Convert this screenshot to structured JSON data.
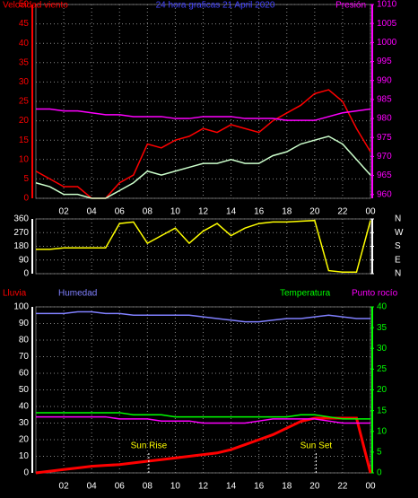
{
  "chart_data": [
    {
      "type": "line",
      "title": "24 hora graficas  21 April 2020",
      "title_color": "#4444ff",
      "ylabel": "Velocidad viento",
      "ylabel_color": "#ff0000",
      "y2label": "Presión",
      "y2label_color": "#ff00ff",
      "x": [
        0,
        1,
        2,
        3,
        4,
        5,
        6,
        7,
        8,
        9,
        10,
        11,
        12,
        13,
        14,
        15,
        16,
        17,
        18,
        19,
        20,
        21,
        22,
        23,
        24
      ],
      "xlim": [
        0,
        24
      ],
      "xticks": [
        {
          "value": 2,
          "label": "02"
        },
        {
          "value": 4,
          "label": "04"
        },
        {
          "value": 6,
          "label": "06"
        },
        {
          "value": 8,
          "label": "08"
        },
        10,
        12,
        14,
        16,
        18,
        20,
        22,
        {
          "value": 24,
          "label": "00"
        }
      ],
      "ylim": [
        0,
        50
      ],
      "yticks": [
        0,
        5,
        10,
        15,
        20,
        25,
        30,
        35,
        40,
        45,
        50
      ],
      "ytick_color": "#ff0000",
      "y2lim": [
        959,
        1010
      ],
      "y2ticks": [
        960,
        965,
        970,
        975,
        980,
        985,
        990,
        995,
        1000,
        1005,
        1010
      ],
      "y2tick_color": "#ff00ff",
      "grid": true,
      "series": [
        {
          "color": "#ff0000",
          "values": [
            7,
            5,
            3,
            3,
            0,
            0,
            4,
            6,
            14,
            13,
            15,
            16,
            18,
            17,
            19,
            18,
            17,
            20,
            22,
            24,
            27,
            28,
            25,
            18,
            12
          ]
        },
        {
          "color": "#ccffcc",
          "values": [
            4,
            3,
            1,
            1,
            0,
            0,
            2,
            4,
            7,
            6,
            7,
            8,
            9,
            9,
            10,
            9,
            9,
            11,
            12,
            14,
            15,
            16,
            14,
            10,
            6
          ]
        },
        {
          "color": "#ff00ff",
          "axis": "y2",
          "values": [
            982.5,
            982.5,
            982,
            982,
            981.5,
            981,
            981,
            980.5,
            980.5,
            980.5,
            980,
            980,
            980.5,
            980.5,
            980.5,
            980,
            980,
            980,
            979.5,
            979.5,
            979.5,
            980.5,
            981.5,
            982,
            982.5
          ]
        }
      ]
    },
    {
      "type": "line",
      "x": [
        0,
        1,
        2,
        3,
        4,
        5,
        6,
        7,
        8,
        9,
        10,
        11,
        12,
        13,
        14,
        15,
        16,
        17,
        18,
        19,
        20,
        21,
        22,
        23,
        24
      ],
      "xlim": [
        0,
        24
      ],
      "xticks": [
        2,
        4,
        6,
        8,
        10,
        12,
        14,
        16,
        18,
        20,
        22,
        24
      ],
      "xtick_labels": false,
      "ylim": [
        0,
        360
      ],
      "yticks": [
        0,
        90,
        180,
        270,
        360
      ],
      "ytick_color": "#ffffff",
      "y2lim": [
        0,
        360
      ],
      "y2ticks": [
        {
          "value": 360,
          "label": "N"
        },
        {
          "value": 270,
          "label": "W"
        },
        {
          "value": 180,
          "label": "S"
        },
        {
          "value": 90,
          "label": "E"
        },
        {
          "value": 0,
          "label": "N"
        }
      ],
      "y2tick_color": "#ffffff",
      "grid": true,
      "series": [
        {
          "color": "#ffff00",
          "values": [
            160,
            160,
            170,
            170,
            170,
            170,
            330,
            340,
            200,
            250,
            300,
            200,
            280,
            330,
            250,
            300,
            330,
            340,
            340,
            345,
            350,
            20,
            10,
            10,
            350
          ]
        }
      ]
    },
    {
      "type": "line",
      "ylabel": "Lluvia",
      "ylabel_color": "#ff0000",
      "x": [
        0,
        1,
        2,
        3,
        4,
        5,
        6,
        7,
        8,
        9,
        10,
        11,
        12,
        13,
        14,
        15,
        16,
        17,
        18,
        19,
        20,
        21,
        22,
        23,
        24
      ],
      "xlim": [
        0,
        24
      ],
      "xticks": [
        {
          "value": 2,
          "label": "02"
        },
        {
          "value": 4,
          "label": "04"
        },
        {
          "value": 6,
          "label": "06"
        },
        {
          "value": 8,
          "label": "08"
        },
        10,
        12,
        14,
        16,
        18,
        20,
        22,
        {
          "value": 24,
          "label": "00"
        }
      ],
      "ylim": [
        0,
        100
      ],
      "yticks": [
        0,
        10,
        20,
        30,
        40,
        50,
        60,
        70,
        80,
        90,
        100
      ],
      "ytick_color": "#ffffff",
      "y2lim": [
        0,
        40
      ],
      "y2ticks": [
        0,
        5,
        10,
        15,
        20,
        25,
        30,
        35,
        40
      ],
      "y2tick_color": "#00ff00",
      "grid": true,
      "series": [
        {
          "color": "#ff0000",
          "width": 3,
          "values": [
            0,
            1,
            2,
            3,
            4,
            4.5,
            5,
            6,
            7,
            8,
            9,
            10,
            11,
            12,
            14,
            17,
            20,
            23,
            27,
            31,
            33,
            33,
            33,
            33,
            0
          ]
        },
        {
          "name": "Humedad",
          "color": "#8080ff",
          "values": [
            96,
            96,
            96,
            97,
            97,
            96,
            96,
            95,
            95,
            95,
            95,
            95,
            94,
            93,
            92,
            91,
            91,
            92,
            93,
            93,
            94,
            95,
            94,
            93,
            93
          ]
        },
        {
          "name": "Temperatura",
          "color": "#00ff00",
          "axis": "y2",
          "values": [
            14.5,
            14.5,
            14.5,
            14.5,
            14.5,
            14.5,
            14.5,
            14,
            14,
            14,
            13.5,
            13.5,
            13.5,
            13.5,
            13.5,
            13.5,
            13.5,
            13.5,
            13.5,
            14,
            14,
            13.5,
            13,
            13,
            13
          ]
        },
        {
          "name": "Punto rocío",
          "color": "#ff00ff",
          "axis": "y2",
          "values": [
            13.5,
            13.5,
            13.5,
            13.5,
            13.5,
            13.5,
            13,
            13,
            13,
            12.5,
            12.5,
            12.5,
            12,
            12,
            12,
            12,
            12.5,
            13,
            13,
            13,
            13,
            12.5,
            12,
            12,
            12
          ]
        }
      ],
      "annotations": [
        {
          "text": "Sun Rise",
          "x": 8.1
        },
        {
          "text": "Sun Set",
          "x": 20.1
        }
      ]
    }
  ]
}
